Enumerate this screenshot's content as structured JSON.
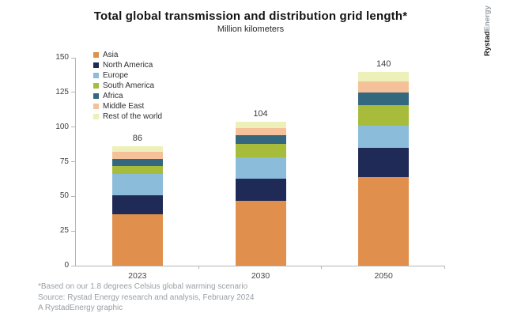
{
  "title": "Total global transmission and distribution grid length*",
  "subtitle": "Million kilometers",
  "brand": {
    "bold": "Rystad",
    "light": "Energy"
  },
  "footnotes": [
    "*Based on our 1.8 degrees Celsius global warming scenario",
    "Source: Rystad Energy research and analysis, February 2024",
    "A RystadEnergy graphic"
  ],
  "chart_data": {
    "type": "bar",
    "stacked": true,
    "title": "Total global transmission and distribution grid length*",
    "subtitle": "Million kilometers",
    "categories": [
      "2023",
      "2030",
      "2050"
    ],
    "series": [
      {
        "name": "Asia",
        "color": "#E08F4C",
        "values": [
          37,
          47,
          64
        ]
      },
      {
        "name": "North America",
        "color": "#1F2A56",
        "values": [
          14,
          16,
          21
        ]
      },
      {
        "name": "Europe",
        "color": "#8BBCDA",
        "values": [
          15,
          15,
          16
        ]
      },
      {
        "name": "South America",
        "color": "#A8BC3C",
        "values": [
          6,
          10,
          15
        ]
      },
      {
        "name": "Africa",
        "color": "#33687F",
        "values": [
          5,
          6,
          9
        ]
      },
      {
        "name": "Middle East",
        "color": "#F4C198",
        "values": [
          5,
          5,
          8
        ]
      },
      {
        "name": "Rest of the world",
        "color": "#EDF0B8",
        "values": [
          4,
          5,
          7
        ]
      }
    ],
    "totals": [
      86,
      104,
      140
    ],
    "yticks": [
      0,
      25,
      50,
      75,
      100,
      125,
      150
    ],
    "ylim": [
      0,
      150
    ],
    "grid": false,
    "legend_position": "top-left"
  }
}
